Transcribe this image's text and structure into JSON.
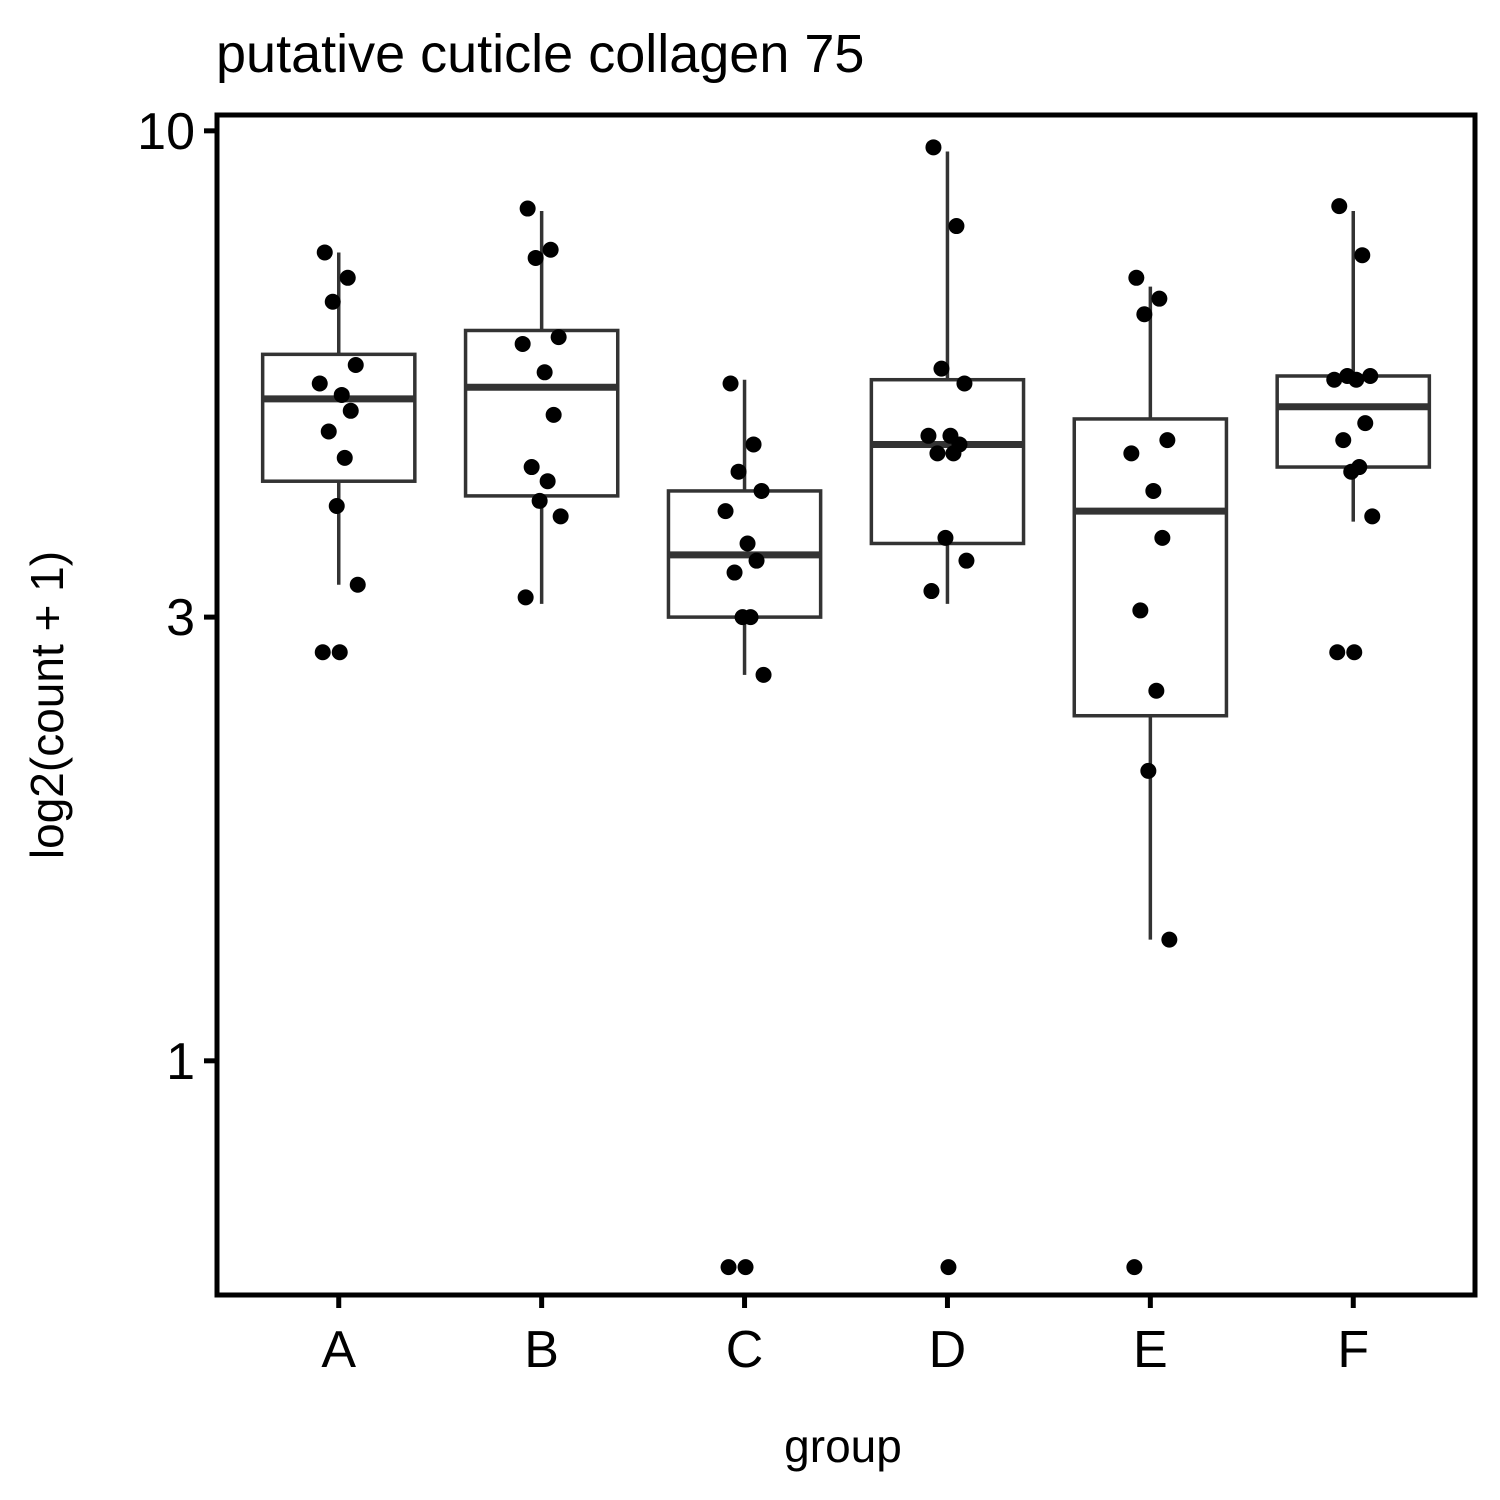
{
  "chart_data": {
    "type": "box",
    "title": "putative cuticle collagen 75",
    "xlabel": "group",
    "ylabel": "log2(count + 1)",
    "y_scale": "log10",
    "ylim": [
      0.56,
      10.4
    ],
    "y_ticks": [
      1,
      3,
      10
    ],
    "y_tick_labels": [
      "1",
      "3",
      "10"
    ],
    "categories": [
      "A",
      "B",
      "C",
      "D",
      "E",
      "F"
    ],
    "boxes": [
      {
        "group": "A",
        "whisker_low": 3.25,
        "q1": 4.2,
        "median": 5.15,
        "q3": 5.75,
        "whisker_high": 7.4
      },
      {
        "group": "B",
        "whisker_low": 3.1,
        "q1": 4.05,
        "median": 5.3,
        "q3": 6.1,
        "whisker_high": 8.2
      },
      {
        "group": "C",
        "whisker_low": 2.6,
        "q1": 3.0,
        "median": 3.5,
        "q3": 4.1,
        "whisker_high": 5.4
      },
      {
        "group": "D",
        "whisker_low": 3.1,
        "q1": 3.6,
        "median": 4.6,
        "q3": 5.4,
        "whisker_high": 9.5
      },
      {
        "group": "E",
        "whisker_low": 1.35,
        "q1": 2.35,
        "median": 3.9,
        "q3": 4.9,
        "whisker_high": 6.8
      },
      {
        "group": "F",
        "whisker_low": 3.8,
        "q1": 4.35,
        "median": 5.05,
        "q3": 5.45,
        "whisker_high": 8.2
      }
    ],
    "points": [
      {
        "group": "A",
        "values": [
          7.4,
          6.95,
          6.55,
          5.6,
          5.35,
          5.2,
          5.0,
          4.75,
          4.45,
          3.95,
          3.25,
          2.75,
          2.75
        ]
      },
      {
        "group": "B",
        "values": [
          8.25,
          7.45,
          7.3,
          6.0,
          5.9,
          5.5,
          4.95,
          4.35,
          4.2,
          4.0,
          3.85,
          3.15
        ]
      },
      {
        "group": "C",
        "values": [
          5.35,
          4.6,
          4.3,
          4.1,
          3.9,
          3.6,
          3.45,
          3.35,
          3.0,
          3.0,
          2.6,
          0.6,
          0.6
        ]
      },
      {
        "group": "D",
        "values": [
          9.6,
          7.9,
          5.55,
          5.35,
          4.7,
          4.7,
          4.6,
          4.5,
          4.5,
          3.65,
          3.45,
          3.2,
          0.6
        ]
      },
      {
        "group": "E",
        "values": [
          6.95,
          6.6,
          6.35,
          4.65,
          4.5,
          4.1,
          3.65,
          3.05,
          2.5,
          2.05,
          1.35,
          0.6
        ]
      },
      {
        "group": "F",
        "values": [
          8.3,
          7.35,
          5.45,
          5.45,
          5.4,
          5.4,
          4.85,
          4.65,
          4.35,
          4.3,
          3.85,
          2.75,
          2.75
        ]
      }
    ]
  }
}
